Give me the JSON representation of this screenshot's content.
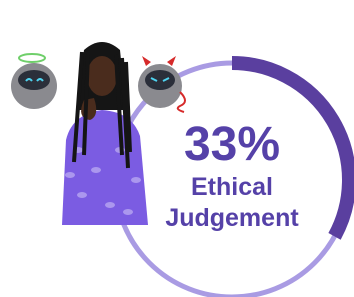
{
  "stat": {
    "value": 33,
    "value_label": "33%",
    "label_lines": [
      "Ethical",
      "Judgement"
    ]
  }
}
